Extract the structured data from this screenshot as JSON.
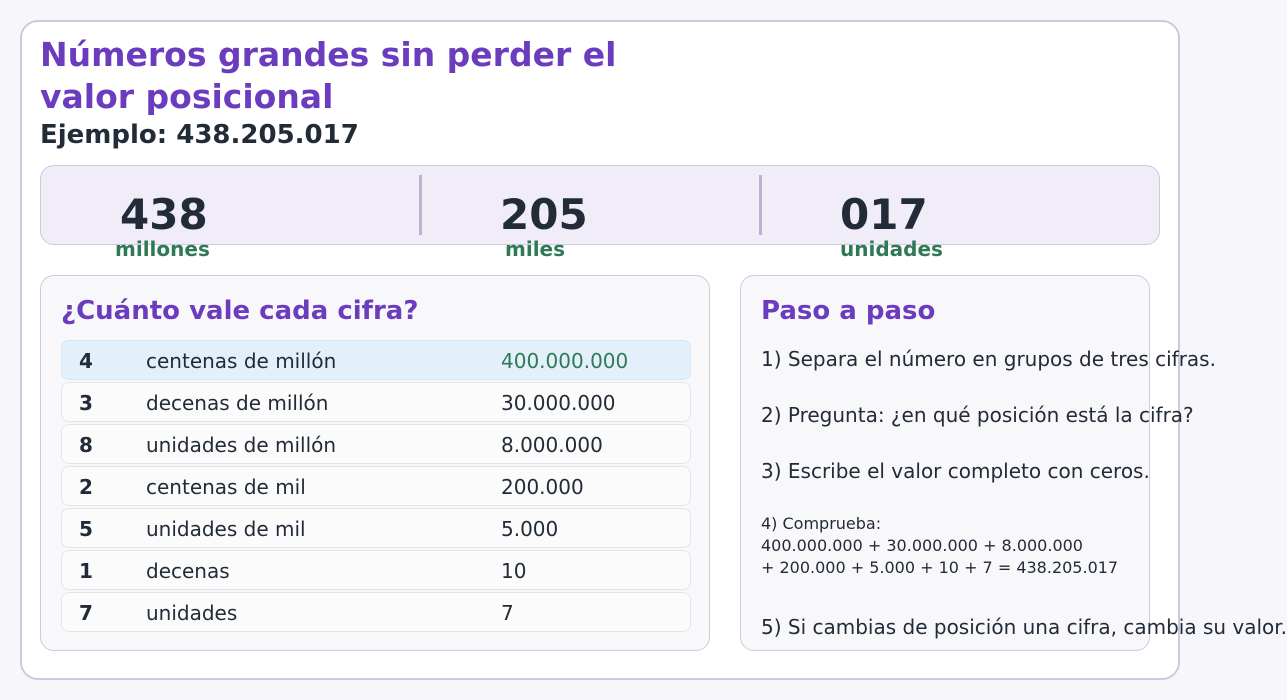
{
  "title_line1": "Números grandes sin perder el",
  "title_line2": "valor posicional",
  "example": "Ejemplo: 438.205.017",
  "groups": [
    {
      "number": "438",
      "label": "millones"
    },
    {
      "number": "205",
      "label": "miles"
    },
    {
      "number": "017",
      "label": "unidades"
    }
  ],
  "left_panel": {
    "title": "¿Cuánto vale cada cifra?",
    "rows": [
      {
        "digit": "4",
        "place": "centenas de millón",
        "value": "400.000.000"
      },
      {
        "digit": "3",
        "place": "decenas de millón",
        "value": "30.000.000"
      },
      {
        "digit": "8",
        "place": "unidades de millón",
        "value": "8.000.000"
      },
      {
        "digit": "2",
        "place": "centenas de mil",
        "value": "200.000"
      },
      {
        "digit": "5",
        "place": "unidades de mil",
        "value": "5.000"
      },
      {
        "digit": "1",
        "place": "decenas",
        "value": "10"
      },
      {
        "digit": "7",
        "place": "unidades",
        "value": "7"
      }
    ]
  },
  "right_panel": {
    "title": "Paso a paso",
    "step1": "1) Separa el número en grupos de tres cifras.",
    "step2": "2) Pregunta: ¿en qué posición está la cifra?",
    "step3": "3) Escribe el valor completo con ceros.",
    "step4_label": "4) Comprueba:",
    "step4_line1": "400.000.000 + 30.000.000 + 8.000.000",
    "step4_line2": "+ 200.000 + 5.000 + 10 + 7 = 438.205.017",
    "step5": "5) Si cambias de posición una cifra, cambia su valor."
  },
  "colors": {
    "accent": "#6c3cbf",
    "label_green": "#2f7a55",
    "highlight_row": "#e3f0fc"
  }
}
